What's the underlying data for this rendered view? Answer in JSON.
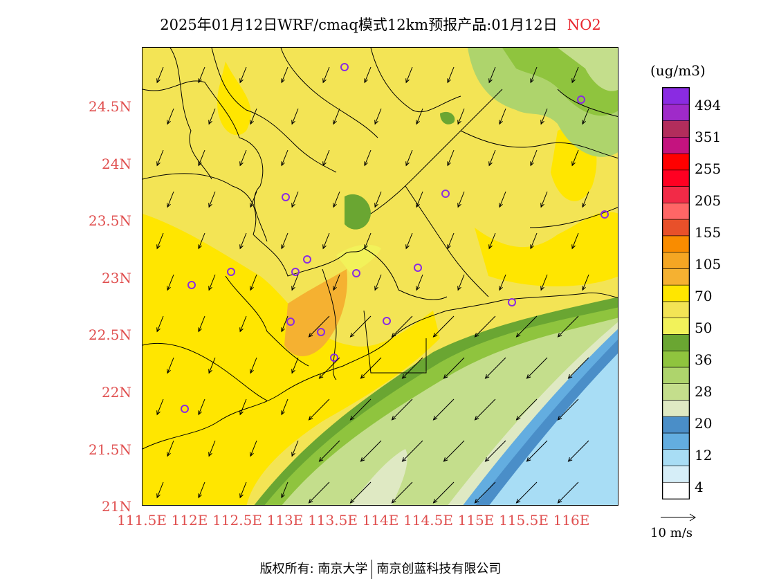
{
  "title": {
    "text": "2025年01月12日WRF/cmaq模式12km预报产品:01月12日",
    "species": "NO2"
  },
  "axes": {
    "lat_labels": [
      "24.5N",
      "24N",
      "23.5N",
      "23N",
      "22.5N",
      "22N",
      "21.5N",
      "21N"
    ],
    "lon_labels": [
      "111.5E",
      "112E",
      "112.5E",
      "113E",
      "113.5E",
      "114E",
      "114.5E",
      "115E",
      "115.5E",
      "116E"
    ]
  },
  "colorbar": {
    "unit": "(ug/m3)",
    "colors": [
      "#ffffff",
      "#d6eef8",
      "#a8ddf5",
      "#63ade0",
      "#4a8ec8",
      "#dfe9c3",
      "#c4de8c",
      "#aed46c",
      "#8fc43e",
      "#6aa632",
      "#f2f25a",
      "#f3e455",
      "#ffe600",
      "#f5b131",
      "#f5a623",
      "#f98c00",
      "#e8502a",
      "#ff6666",
      "#f22a47",
      "#ff0022",
      "#ff0000",
      "#c4137f",
      "#b22d5c",
      "#9f2ac9",
      "#8a2be2"
    ],
    "labels": [
      "4",
      "12",
      "20",
      "28",
      "36",
      "50",
      "70",
      "105",
      "155",
      "205",
      "255",
      "351",
      "494"
    ]
  },
  "wind_legend": {
    "label": "10 m/s"
  },
  "footer": {
    "left": "版权所有: 南京大学",
    "right": "南京创蓝科技有限公司"
  }
}
